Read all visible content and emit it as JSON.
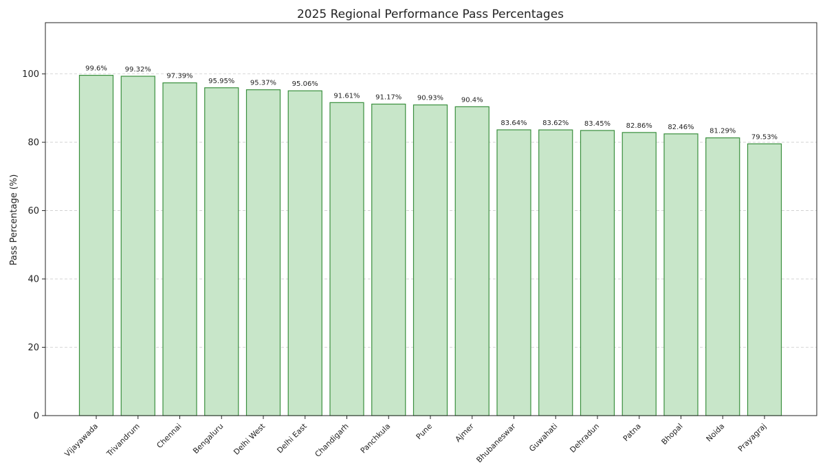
{
  "chart_data": {
    "type": "bar",
    "title": "2025 Regional Performance Pass Percentages",
    "xlabel": "",
    "ylabel": "Pass Percentage (%)",
    "ylim": [
      0,
      115
    ],
    "yticks": [
      0,
      20,
      40,
      60,
      80,
      100
    ],
    "grid": true,
    "categories": [
      "Vijayawada",
      "Trivandrum",
      "Chennai",
      "Bengaluru",
      "Delhi West",
      "Delhi East",
      "Chandigarh",
      "Panchkula",
      "Pune",
      "Ajmer",
      "Bhubaneswar",
      "Guwahati",
      "Dehradun",
      "Patna",
      "Bhopal",
      "Noida",
      "Prayagraj"
    ],
    "values": [
      99.6,
      99.32,
      97.39,
      95.95,
      95.37,
      95.06,
      91.61,
      91.17,
      90.93,
      90.4,
      83.64,
      83.62,
      83.45,
      82.86,
      82.46,
      81.29,
      79.53
    ],
    "data_labels": [
      "99.6%",
      "99.32%",
      "97.39%",
      "95.95%",
      "95.37%",
      "95.06%",
      "91.61%",
      "91.17%",
      "90.93%",
      "90.4%",
      "83.64%",
      "83.62%",
      "83.45%",
      "82.86%",
      "82.46%",
      "81.29%",
      "79.53%"
    ],
    "colors": {
      "bar_fill": "#c8e6c9",
      "bar_stroke": "#388e3c"
    }
  }
}
